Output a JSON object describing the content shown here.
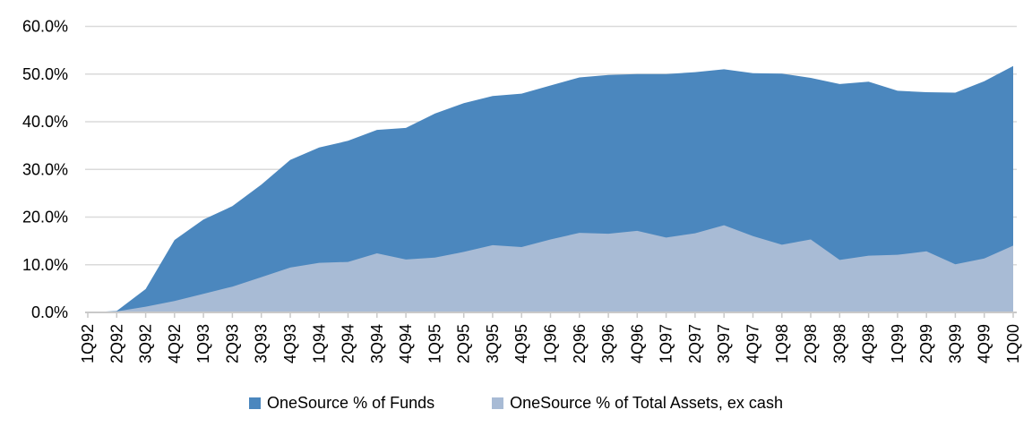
{
  "chart_data": {
    "type": "area",
    "title": "",
    "xlabel": "",
    "ylabel": "",
    "categories": [
      "1Q92",
      "2Q92",
      "3Q92",
      "4Q92",
      "1Q93",
      "2Q93",
      "3Q93",
      "4Q93",
      "1Q94",
      "2Q94",
      "3Q94",
      "4Q94",
      "1Q95",
      "2Q95",
      "3Q95",
      "4Q95",
      "1Q96",
      "2Q96",
      "3Q96",
      "4Q96",
      "1Q97",
      "2Q97",
      "3Q97",
      "4Q97",
      "1Q98",
      "2Q98",
      "3Q98",
      "4Q98",
      "1Q99",
      "2Q99",
      "3Q99",
      "4Q99",
      "1Q00"
    ],
    "series": [
      {
        "name": "OneSource % of Funds",
        "color": "#4B87BE",
        "values": [
          0.0,
          0.3,
          4.9,
          15.2,
          19.5,
          22.3,
          26.8,
          32.0,
          34.6,
          36.0,
          38.3,
          38.7,
          41.7,
          43.9,
          45.4,
          45.9,
          47.6,
          49.3,
          49.8,
          50.0,
          50.0,
          50.4,
          51.0,
          50.2,
          50.1,
          49.2,
          47.9,
          48.4,
          46.5,
          46.2,
          46.1,
          48.5,
          51.7
        ]
      },
      {
        "name": "OneSource % of Total Assets, ex cash",
        "color": "#A8BBD5",
        "values": [
          0.0,
          0.2,
          1.2,
          2.4,
          3.9,
          5.4,
          7.4,
          9.4,
          10.4,
          10.6,
          12.4,
          11.1,
          11.5,
          12.7,
          14.1,
          13.7,
          15.3,
          16.7,
          16.5,
          17.1,
          15.7,
          16.6,
          18.3,
          16.0,
          14.2,
          15.3,
          11.0,
          11.9,
          12.1,
          12.8,
          10.1,
          11.3,
          14.0
        ]
      }
    ],
    "ylim": [
      0,
      60
    ],
    "y_ticks": [
      {
        "value": 60,
        "label": "60.0%"
      },
      {
        "value": 50,
        "label": "50.0%"
      },
      {
        "value": 40,
        "label": "40.0%"
      },
      {
        "value": 30,
        "label": "30.0%"
      },
      {
        "value": 20,
        "label": "20.0%"
      },
      {
        "value": 10,
        "label": "10.0%"
      },
      {
        "value": 0,
        "label": "0.0%"
      }
    ],
    "grid": true,
    "legend_position": "bottom",
    "colors": {
      "gridline": "#DADADA",
      "axis": "#C9C9C9",
      "tick": "#C9C9C9",
      "text": "#000000",
      "background": "#FFFFFF"
    }
  }
}
